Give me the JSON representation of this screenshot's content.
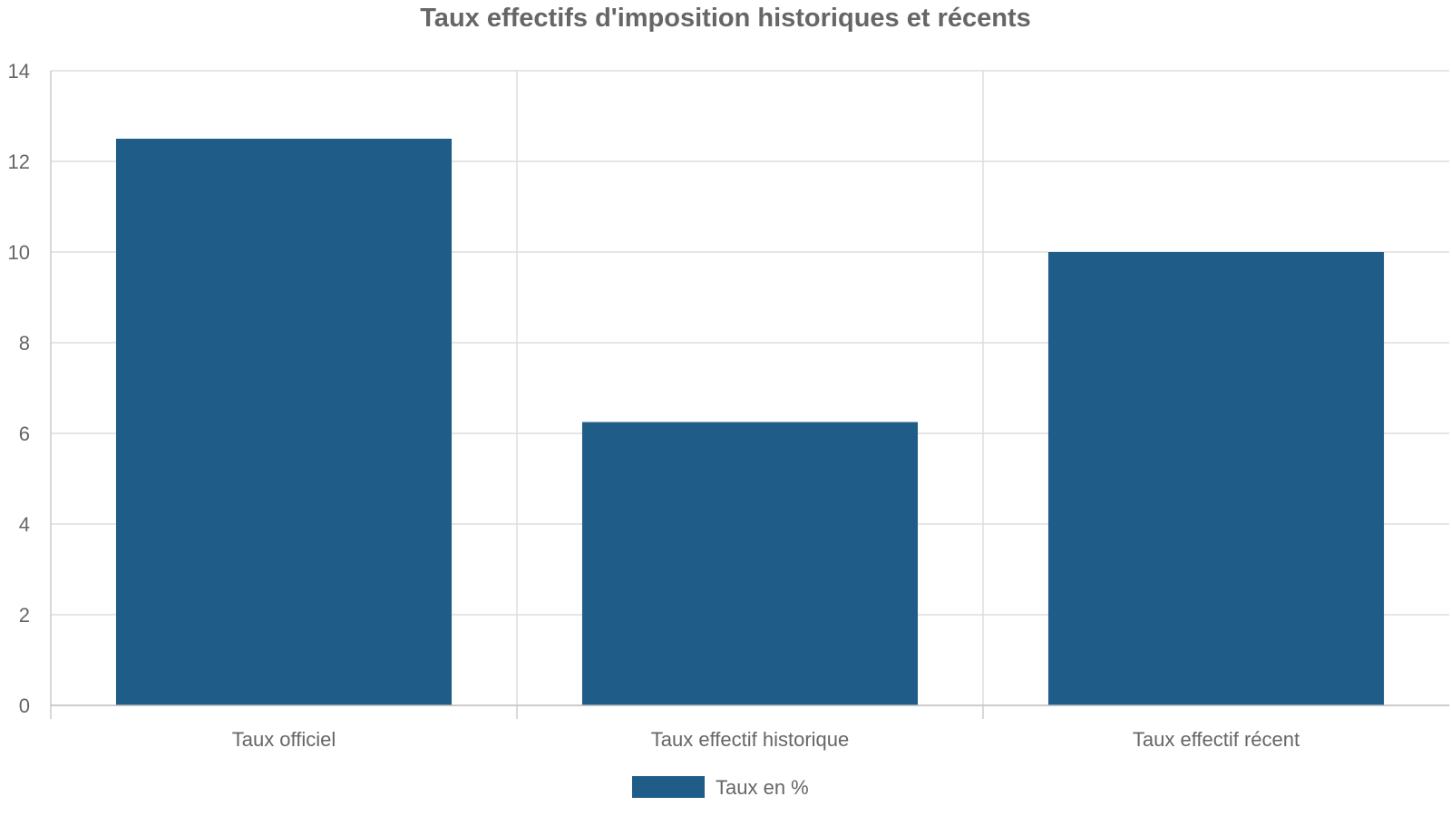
{
  "chart_data": {
    "type": "bar",
    "title": "Taux effectifs d'imposition historiques et récents",
    "categories": [
      "Taux officiel",
      "Taux effectif historique",
      "Taux effectif récent"
    ],
    "series": [
      {
        "name": "Taux en %",
        "values": [
          12.5,
          6.25,
          10
        ],
        "color": "#1f5c87"
      }
    ],
    "ylim": [
      0,
      14
    ],
    "yticks": [
      "0",
      "2",
      "4",
      "6",
      "8",
      "10",
      "12",
      "14"
    ],
    "xlabel": "",
    "ylabel": "",
    "grid": true,
    "legend": "bottom-center"
  }
}
